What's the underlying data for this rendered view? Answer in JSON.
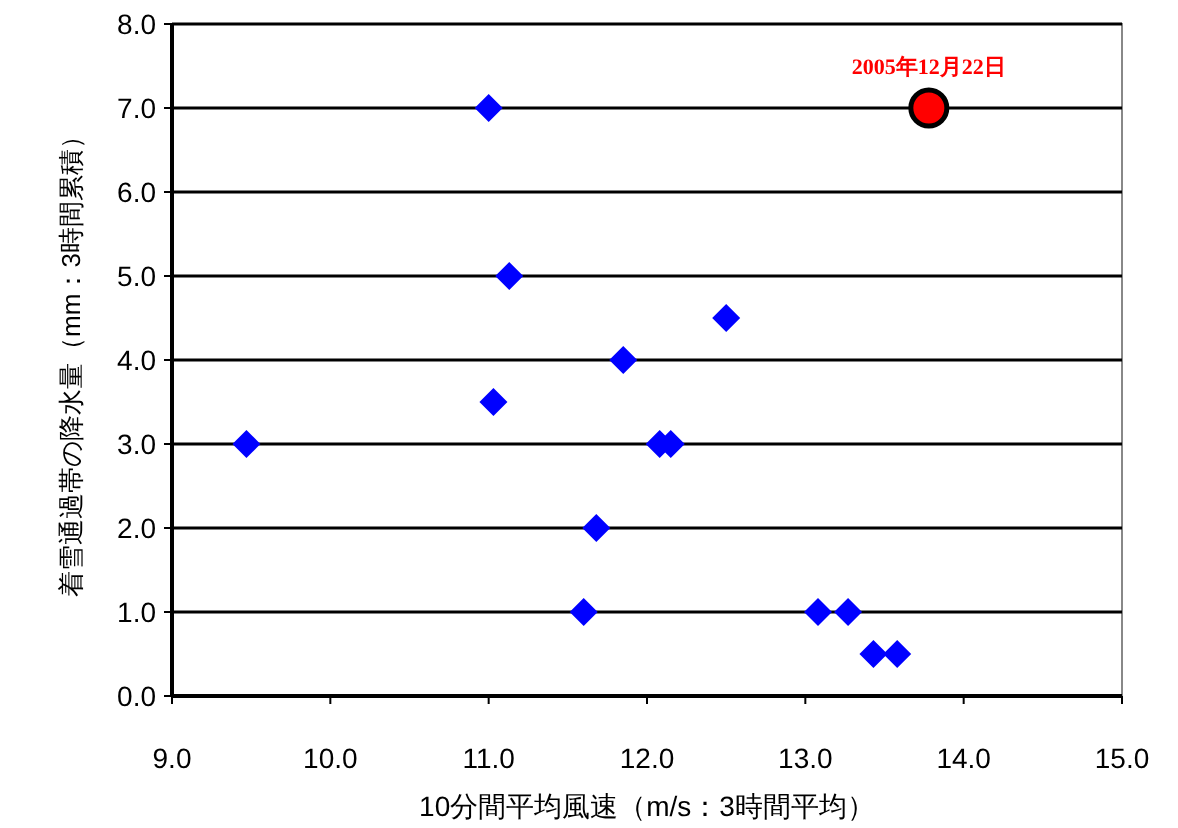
{
  "chart_data": {
    "type": "scatter",
    "xlabel": "10分間平均風速（m/s：3時間平均）",
    "ylabel": "着雪通過帯の降水量（mm：3時間累積）",
    "xlim": [
      9.0,
      15.0
    ],
    "xticks": [
      {
        "value": 9,
        "label": "9.0"
      },
      {
        "value": 10,
        "label": "10.0"
      },
      {
        "value": 11,
        "label": "11.0"
      },
      {
        "value": 12,
        "label": "12.0"
      },
      {
        "value": 13,
        "label": "13.0"
      },
      {
        "value": 14,
        "label": "14.0"
      },
      {
        "value": 15,
        "label": "15.0"
      }
    ],
    "ylim": [
      0.0,
      8.0
    ],
    "yticks": [
      {
        "value": 0,
        "label": "0.0"
      },
      {
        "value": 1,
        "label": "1.0"
      },
      {
        "value": 2,
        "label": "2.0"
      },
      {
        "value": 3,
        "label": "3.0"
      },
      {
        "value": 4,
        "label": "4.0"
      },
      {
        "value": 5,
        "label": "5.0"
      },
      {
        "value": 6,
        "label": "6.0"
      },
      {
        "value": 7,
        "label": "7.0"
      },
      {
        "value": 8,
        "label": "8.0"
      }
    ],
    "grid": "y",
    "series": [
      {
        "color": "#0000ff",
        "marker": "diamond",
        "x": [
          11.0,
          11.13,
          12.5,
          11.85,
          11.03,
          9.47,
          12.08,
          12.15,
          11.68,
          11.6,
          13.08,
          13.27,
          13.43,
          13.58
        ],
        "values": [
          7.0,
          5.0,
          4.5,
          4.0,
          3.5,
          3.0,
          3.0,
          3.0,
          2.0,
          1.0,
          1.0,
          1.0,
          0.5,
          0.5
        ]
      },
      {
        "color": "#ff0000",
        "marker": "circle",
        "x": [
          13.78
        ],
        "values": [
          7.0
        ]
      }
    ],
    "annotations": [
      {
        "text": "2005年12月22日",
        "x": 13.78,
        "y": 7.0
      }
    ]
  }
}
